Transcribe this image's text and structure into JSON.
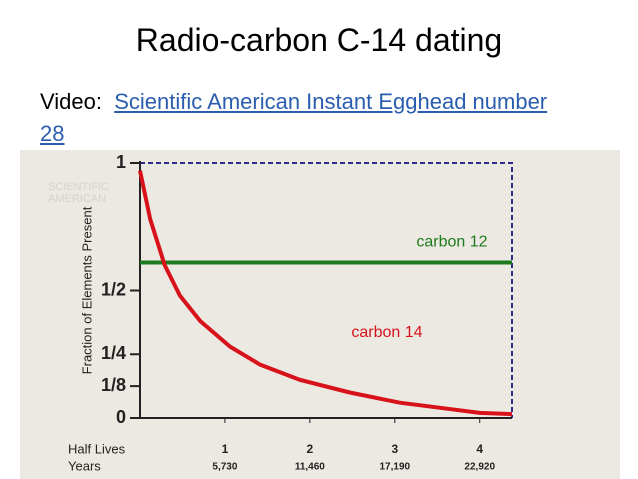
{
  "title": "Radio-carbon C-14 dating",
  "video_label": "Video:",
  "link_text": "Scientific American Instant Egghead number 28",
  "chart_data": {
    "type": "line",
    "watermark": [
      "SCIENTIFIC",
      "AMERICAN"
    ],
    "ylabel": "Fraction of Elements Present",
    "x_row_label": "Half Lives",
    "years_row_label": "Years",
    "years": [
      "5,730",
      "11,460",
      "17,190",
      "22,920"
    ],
    "xlim": [
      0,
      4.38
    ],
    "xticks": [
      1,
      2,
      3,
      4
    ],
    "ylim": [
      0,
      1
    ],
    "yticks": [
      0,
      {
        "value": 0.125,
        "label": "1/8"
      },
      {
        "value": 0.25,
        "label": "1/4"
      },
      {
        "value": 0.5,
        "label": "1/2"
      },
      1
    ],
    "series": [
      {
        "name": "carbon 12",
        "color": "#1e7a1e",
        "x": [
          0,
          4.38
        ],
        "values": [
          0.61,
          0.61
        ]
      },
      {
        "name": "carbon 14",
        "color": "#d8121b",
        "x": [
          0,
          0.12,
          0.29,
          0.47,
          0.71,
          1.06,
          1.41,
          1.88,
          2.47,
          3.06,
          3.65,
          4,
          4.38
        ],
        "values": [
          0.97,
          0.78,
          0.6,
          0.48,
          0.38,
          0.28,
          0.21,
          0.15,
          0.1,
          0.06,
          0.035,
          0.02,
          0.015
        ]
      }
    ]
  }
}
